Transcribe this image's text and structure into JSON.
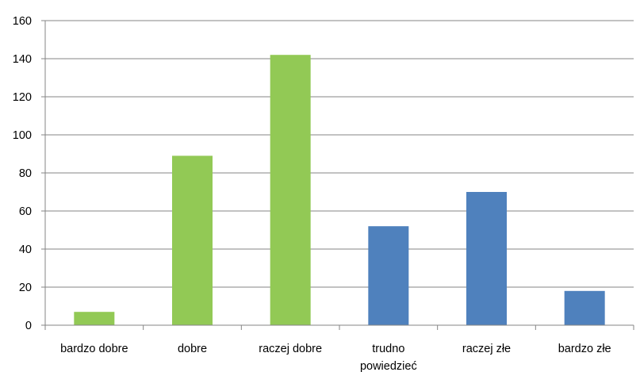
{
  "chart_data": {
    "type": "bar",
    "categories": [
      "bardzo dobre",
      "dobre",
      "raczej dobre",
      "trudno powiedzieć",
      "raczej złe",
      "bardzo złe"
    ],
    "values": [
      7,
      89,
      142,
      52,
      70,
      18
    ],
    "bar_colors": [
      "#92c955",
      "#92c955",
      "#92c955",
      "#4f81bd",
      "#4f81bd",
      "#4f81bd"
    ],
    "ylim": [
      0,
      160
    ],
    "yticks": [
      0,
      20,
      40,
      60,
      80,
      100,
      120,
      140,
      160
    ],
    "grid": true,
    "legend": "none",
    "title": "",
    "xlabel": "",
    "ylabel": ""
  }
}
